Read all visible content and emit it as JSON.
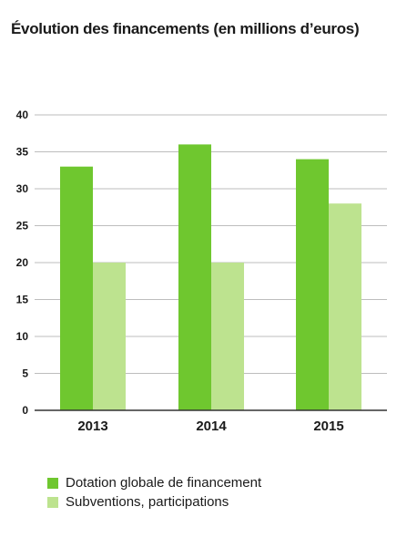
{
  "title": "Évolution des financements (en millions d’euros)",
  "chart_data": {
    "type": "bar",
    "title": "Évolution des financements (en millions d’euros)",
    "categories": [
      "2013",
      "2014",
      "2015"
    ],
    "series": [
      {
        "name": "Dotation globale de financement",
        "values": [
          33,
          36,
          34
        ],
        "color": "#6fc72f"
      },
      {
        "name": "Subventions, participations",
        "values": [
          20,
          20,
          28
        ],
        "color": "#bde38f"
      }
    ],
    "ylim": [
      0,
      40
    ],
    "yticks": [
      0,
      5,
      10,
      15,
      20,
      25,
      30,
      35,
      40
    ],
    "grid": true,
    "legend_position": "bottom-left"
  }
}
